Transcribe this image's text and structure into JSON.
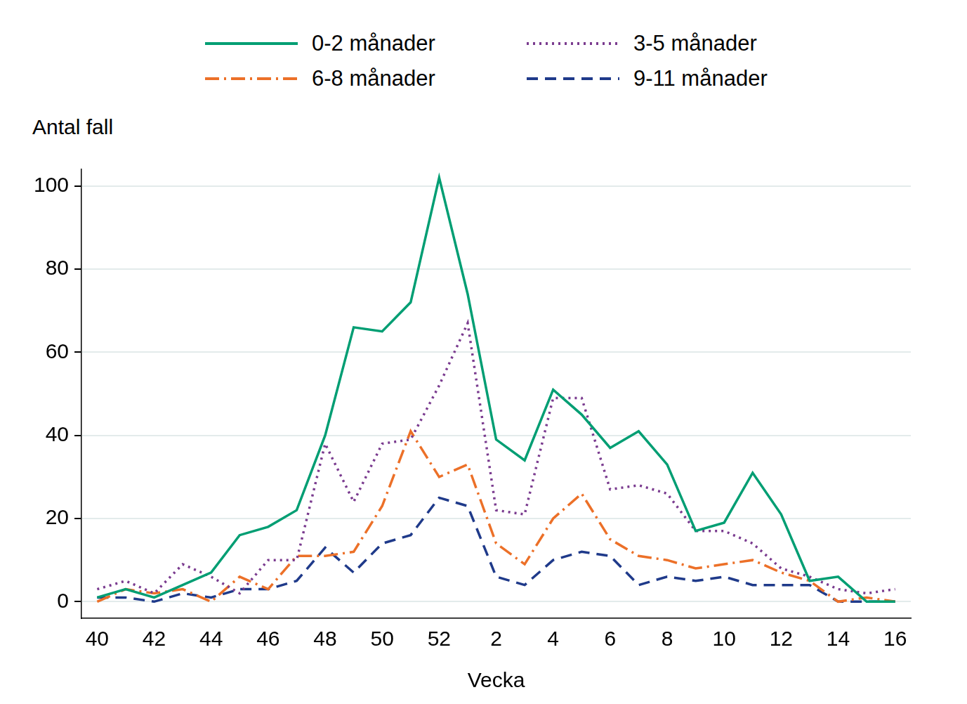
{
  "chart_data": {
    "type": "line",
    "y_label": "Antal fall",
    "x_label": "Vecka",
    "categories": [
      "40",
      null,
      "42",
      null,
      "44",
      null,
      "46",
      null,
      "48",
      null,
      "50",
      null,
      "52",
      null,
      "2",
      null,
      "4",
      null,
      "6",
      null,
      "8",
      null,
      "10",
      null,
      "12",
      null,
      "14",
      null,
      "16"
    ],
    "series": [
      {
        "name": "0-2 månader",
        "color": "#009e73",
        "line_style": "solid",
        "values": [
          1,
          3,
          1,
          4,
          7,
          16,
          18,
          22,
          40,
          66,
          65,
          72,
          102,
          74,
          39,
          34,
          51,
          45,
          37,
          41,
          33,
          17,
          19,
          31,
          21,
          5,
          6,
          0,
          0
        ]
      },
      {
        "name": "3-5 månader",
        "color": "#7a3b8f",
        "line_style": "dotted",
        "values": [
          3,
          5,
          2,
          9,
          6,
          2,
          10,
          10,
          38,
          24,
          38,
          39,
          52,
          67,
          22,
          21,
          49,
          49,
          27,
          28,
          26,
          17,
          17,
          14,
          8,
          6,
          3,
          2,
          3
        ]
      },
      {
        "name": "6-8 månader",
        "color": "#ec7028",
        "line_style": "dashdot",
        "values": [
          0,
          3,
          2,
          3,
          0,
          6,
          3,
          11,
          11,
          12,
          23,
          41,
          30,
          33,
          14,
          9,
          20,
          26,
          15,
          11,
          10,
          8,
          9,
          10,
          7,
          5,
          0,
          1,
          0
        ]
      },
      {
        "name": "9-11 månader",
        "color": "#1f3a8a",
        "line_style": "dashed",
        "values": [
          1,
          1,
          0,
          2,
          1,
          3,
          3,
          5,
          13,
          7,
          14,
          16,
          25,
          23,
          6,
          4,
          10,
          12,
          11,
          4,
          6,
          5,
          6,
          4,
          4,
          4,
          0,
          0,
          0
        ]
      }
    ],
    "ylim": [
      -4,
      104
    ],
    "yticks": [
      0,
      20,
      40,
      60,
      80,
      100
    ],
    "grid": true,
    "legend": "top"
  }
}
